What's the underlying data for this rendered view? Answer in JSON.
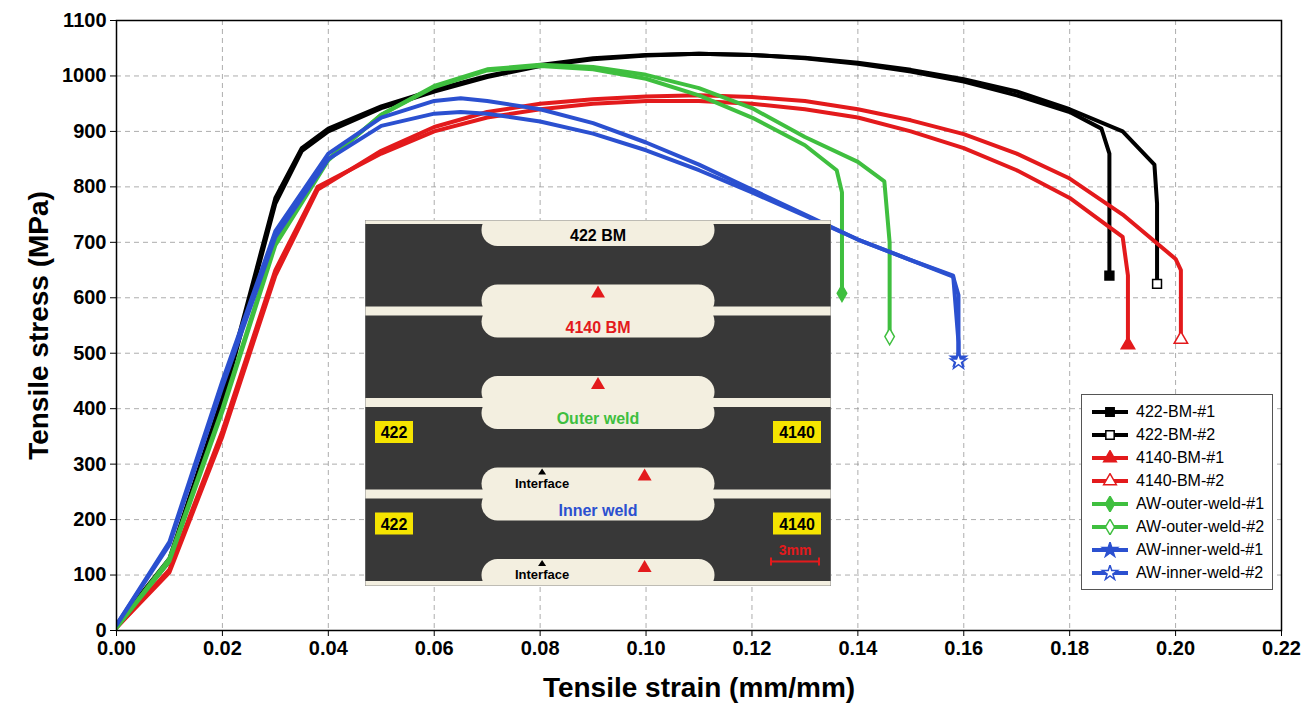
{
  "chart_data": {
    "type": "line",
    "x_label": "Tensile strain (mm/mm)",
    "y_label": "Tensile stress (MPa)",
    "xlim": [
      0,
      0.22
    ],
    "xticks": [
      {
        "value": 0,
        "label": "0.00"
      },
      {
        "value": 0.02,
        "label": "0.02"
      },
      {
        "value": 0.04,
        "label": "0.04"
      },
      {
        "value": 0.06,
        "label": "0.06"
      },
      {
        "value": 0.08,
        "label": "0.08"
      },
      {
        "value": 0.1,
        "label": "0.10"
      },
      {
        "value": 0.12,
        "label": "0.12"
      },
      {
        "value": 0.14,
        "label": "0.14"
      },
      {
        "value": 0.16,
        "label": "0.16"
      },
      {
        "value": 0.18,
        "label": "0.18"
      },
      {
        "value": 0.2,
        "label": "0.20"
      },
      {
        "value": 0.22,
        "label": "0.22"
      }
    ],
    "ylim": [
      0,
      1100
    ],
    "yticks": [
      0,
      100,
      200,
      300,
      400,
      500,
      600,
      700,
      800,
      900,
      1000,
      1100
    ],
    "grid": true,
    "legend": "bottom-right",
    "series": [
      {
        "name": "422-BM-#1",
        "color": "#000000",
        "marker": "square",
        "x": [
          0,
          0.01,
          0.02,
          0.03,
          0.035,
          0.04,
          0.05,
          0.06,
          0.07,
          0.08,
          0.09,
          0.1,
          0.11,
          0.12,
          0.13,
          0.14,
          0.15,
          0.16,
          0.17,
          0.18,
          0.186,
          0.1875,
          0.1875
        ],
        "values": [
          10,
          130,
          420,
          780,
          870,
          905,
          945,
          975,
          1000,
          1020,
          1032,
          1038,
          1040,
          1038,
          1032,
          1022,
          1008,
          990,
          965,
          935,
          905,
          860,
          640
        ]
      },
      {
        "name": "422-BM-#2",
        "color": "#000000",
        "marker": "square-open",
        "x": [
          0,
          0.01,
          0.02,
          0.03,
          0.035,
          0.04,
          0.05,
          0.06,
          0.07,
          0.08,
          0.09,
          0.1,
          0.11,
          0.12,
          0.13,
          0.14,
          0.15,
          0.16,
          0.17,
          0.18,
          0.19,
          0.196,
          0.1965,
          0.1965
        ],
        "values": [
          8,
          125,
          410,
          770,
          865,
          900,
          942,
          972,
          998,
          1018,
          1030,
          1037,
          1040,
          1038,
          1033,
          1024,
          1011,
          994,
          972,
          940,
          900,
          840,
          770,
          625
        ]
      },
      {
        "name": "4140-BM-#1",
        "color": "#e31a1c",
        "marker": "triangle",
        "x": [
          0,
          0.01,
          0.02,
          0.03,
          0.038,
          0.05,
          0.06,
          0.07,
          0.08,
          0.09,
          0.1,
          0.11,
          0.12,
          0.13,
          0.14,
          0.15,
          0.16,
          0.17,
          0.18,
          0.19,
          0.191,
          0.191
        ],
        "values": [
          5,
          110,
          360,
          650,
          800,
          860,
          900,
          925,
          940,
          950,
          955,
          955,
          950,
          940,
          925,
          900,
          870,
          830,
          780,
          710,
          640,
          515
        ]
      },
      {
        "name": "4140-BM-#2",
        "color": "#e31a1c",
        "marker": "triangle-open",
        "x": [
          0,
          0.01,
          0.02,
          0.03,
          0.038,
          0.05,
          0.06,
          0.07,
          0.08,
          0.09,
          0.1,
          0.11,
          0.12,
          0.13,
          0.14,
          0.15,
          0.16,
          0.17,
          0.18,
          0.19,
          0.2,
          0.201,
          0.201
        ],
        "values": [
          5,
          105,
          350,
          640,
          795,
          865,
          908,
          935,
          950,
          958,
          963,
          965,
          962,
          955,
          940,
          920,
          895,
          860,
          815,
          750,
          670,
          650,
          525
        ]
      },
      {
        "name": "AW-outer-weld-#1",
        "color": "#3fbf3f",
        "marker": "diamond",
        "x": [
          0,
          0.01,
          0.02,
          0.03,
          0.04,
          0.05,
          0.06,
          0.07,
          0.08,
          0.09,
          0.1,
          0.11,
          0.12,
          0.13,
          0.136,
          0.137,
          0.137
        ],
        "values": [
          5,
          130,
          400,
          700,
          850,
          930,
          980,
          1010,
          1018,
          1012,
          995,
          965,
          925,
          875,
          830,
          790,
          608
        ]
      },
      {
        "name": "AW-outer-weld-#2",
        "color": "#3fbf3f",
        "marker": "diamond-open",
        "x": [
          0,
          0.01,
          0.02,
          0.03,
          0.04,
          0.05,
          0.06,
          0.07,
          0.08,
          0.09,
          0.1,
          0.11,
          0.12,
          0.13,
          0.14,
          0.145,
          0.146,
          0.146
        ],
        "values": [
          5,
          125,
          395,
          695,
          848,
          930,
          982,
          1012,
          1020,
          1016,
          1002,
          978,
          942,
          890,
          845,
          810,
          700,
          530
        ]
      },
      {
        "name": "AW-inner-weld-#1",
        "color": "#2b50d0",
        "marker": "star",
        "x": [
          0,
          0.01,
          0.02,
          0.03,
          0.04,
          0.05,
          0.06,
          0.065,
          0.07,
          0.08,
          0.09,
          0.1,
          0.11,
          0.12,
          0.13,
          0.14,
          0.15,
          0.158,
          0.159,
          0.159
        ],
        "values": [
          10,
          160,
          450,
          720,
          860,
          925,
          955,
          960,
          955,
          940,
          915,
          880,
          840,
          795,
          750,
          705,
          668,
          640,
          520,
          490
        ]
      },
      {
        "name": "AW-inner-weld-#2",
        "color": "#2b50d0",
        "marker": "star-open",
        "x": [
          0,
          0.01,
          0.02,
          0.03,
          0.04,
          0.05,
          0.06,
          0.065,
          0.07,
          0.08,
          0.09,
          0.1,
          0.11,
          0.12,
          0.13,
          0.14,
          0.15,
          0.158,
          0.159,
          0.159
        ],
        "values": [
          10,
          155,
          440,
          710,
          850,
          910,
          932,
          935,
          932,
          918,
          896,
          866,
          830,
          790,
          748,
          705,
          668,
          638,
          605,
          485
        ]
      }
    ],
    "inset": {
      "specimens": [
        {
          "label": "422 BM",
          "color": "#000000"
        },
        {
          "label": "4140 BM",
          "color": "#e31a1c"
        },
        {
          "label": "Outer weld",
          "color": "#3fbf3f",
          "left": "422",
          "right": "4140",
          "interface": "Interface"
        },
        {
          "label": "Inner weld",
          "color": "#2b50d0",
          "left": "422",
          "right": "4140",
          "interface": "Interface"
        }
      ],
      "scale_bar": "3mm"
    }
  }
}
